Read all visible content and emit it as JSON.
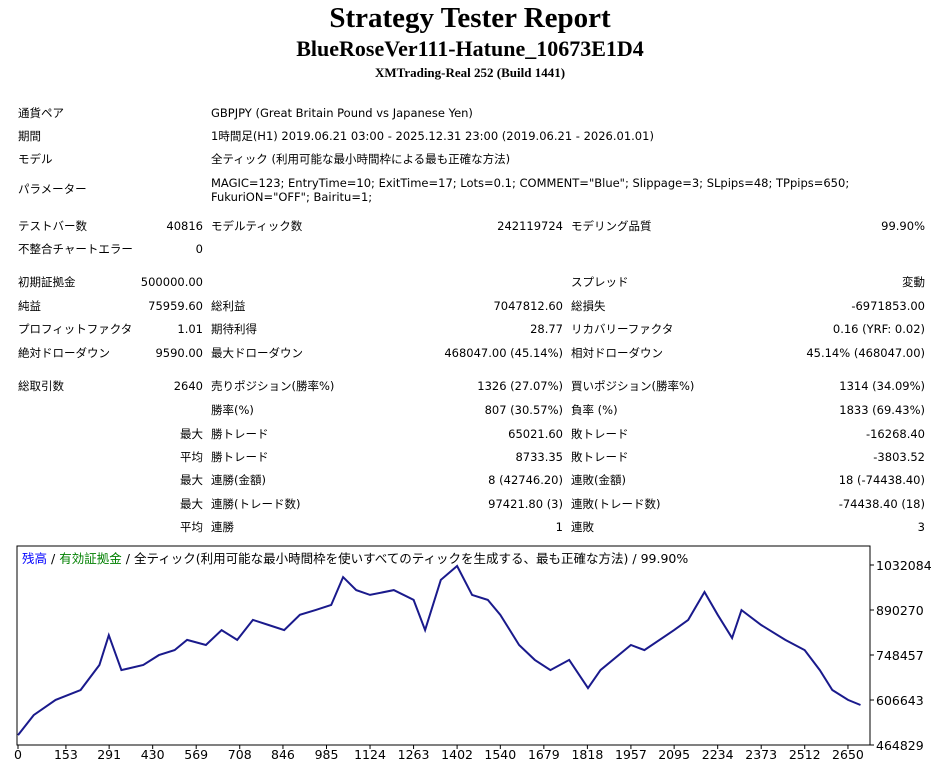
{
  "header": {
    "title": "Strategy Tester Report",
    "subtitle": "BlueRoseVer111-Hatune_10673E1D4",
    "broker": "XMTrading-Real 252 (Build 1441)"
  },
  "info": [
    [
      "通貨ペア",
      "GBPJPY (Great Britain Pound vs Japanese Yen)"
    ],
    [
      "期間",
      "1時間足(H1) 2019.06.21 03:00 - 2025.12.31 23:00 (2019.06.21 - 2026.01.01)"
    ],
    [
      "モデル",
      "全ティック (利用可能な最小時間枠による最も正確な方法)"
    ],
    [
      "パラメーター",
      "MAGIC=123; EntryTime=10; ExitTime=17; Lots=0.1; COMMENT=\"Blue\"; Slippage=3; SLpips=48; TPpips=650; FukuriON=\"OFF\"; Bairitu=1;"
    ]
  ],
  "stats": [
    [
      "テストバー数",
      "40816",
      "モデルティック数",
      "242119724",
      "モデリング品質",
      "99.90%"
    ],
    [
      "不整合チャートエラー",
      "0",
      null,
      null,
      null,
      null
    ],
    [
      "初期証拠金",
      "500000.00",
      null,
      null,
      "スプレッド",
      "変動"
    ],
    [
      "純益",
      "75959.60",
      "総利益",
      "7047812.60",
      "総損失",
      "-6971853.00"
    ],
    [
      "プロフィットファクタ",
      "1.01",
      "期待利得",
      "28.77",
      "リカバリーファクタ",
      "0.16 (YRF: 0.02)"
    ],
    [
      "絶対ドローダウン",
      "9590.00",
      "最大ドローダウン",
      "468047.00 (45.14%)",
      "相対ドローダウン",
      "45.14% (468047.00)"
    ],
    [
      "総取引数",
      "2640",
      "売りポジション(勝率%)",
      "1326 (27.07%)",
      "買いポジション(勝率%)",
      "1314 (34.09%)"
    ],
    [
      null,
      null,
      "勝率(%)",
      "807 (30.57%)",
      "負率 (%)",
      "1833 (69.43%)"
    ],
    [
      null,
      "最大",
      "勝トレード",
      "65021.60",
      "敗トレード",
      "-16268.40"
    ],
    [
      null,
      "平均",
      "勝トレード",
      "8733.35",
      "敗トレード",
      "-3803.52"
    ],
    [
      null,
      "最大",
      "連勝(金額)",
      "8 (42746.20)",
      "連敗(金額)",
      "18 (-74438.40)"
    ],
    [
      null,
      "最大",
      "連勝(トレード数)",
      "97421.80 (3)",
      "連敗(トレード数)",
      "-74438.40 (18)"
    ],
    [
      null,
      "平均",
      "連勝",
      "1",
      "連敗",
      "3"
    ]
  ],
  "chart_data": {
    "type": "line",
    "legend": [
      {
        "text": "残高",
        "color": "#0000ff"
      },
      {
        "text": "有効証拠金",
        "color": "#008000"
      },
      {
        "text": "全ティック(利用可能な最小時間枠を使いすべてのティックを生成する、最も正確な方法)"
      },
      {
        "text": "99.90%"
      }
    ],
    "legend_separator": "/",
    "x": [
      0,
      50,
      120,
      200,
      260,
      290,
      330,
      400,
      450,
      500,
      540,
      600,
      650,
      700,
      750,
      800,
      850,
      900,
      950,
      1000,
      1038,
      1080,
      1124,
      1200,
      1263,
      1300,
      1350,
      1402,
      1450,
      1500,
      1540,
      1600,
      1650,
      1700,
      1760,
      1820,
      1860,
      1957,
      2000,
      2095,
      2140,
      2192,
      2234,
      2280,
      2310,
      2373,
      2450,
      2512,
      2560,
      2600,
      2650,
      2690
    ],
    "series": [
      {
        "name": "残高",
        "color": "#1a1a8c",
        "values": [
          496000,
          559000,
          607000,
          638000,
          717000,
          811000,
          701000,
          717000,
          748000,
          764000,
          796000,
          780000,
          827000,
          796000,
          859000,
          843000,
          827000,
          875000,
          890000,
          906000,
          994000,
          953000,
          938000,
          953000,
          922000,
          827000,
          985000,
          1029000,
          938000,
          922000,
          875000,
          780000,
          733000,
          701000,
          733000,
          644000,
          701000,
          780000,
          764000,
          827000,
          859000,
          947000,
          875000,
          802000,
          890000,
          843000,
          796000,
          764000,
          701000,
          638000,
          607000,
          591000
        ]
      }
    ],
    "xlim": [
      0,
      2714
    ],
    "ylim": [
      464829,
      1091960
    ],
    "xticks": [
      0,
      153,
      291,
      430,
      569,
      708,
      846,
      985,
      1124,
      1263,
      1402,
      1540,
      1679,
      1818,
      1957,
      2095,
      2234,
      2373,
      2512,
      2650
    ],
    "yticks": [
      464829,
      606643,
      748457,
      890270,
      1032084
    ]
  }
}
